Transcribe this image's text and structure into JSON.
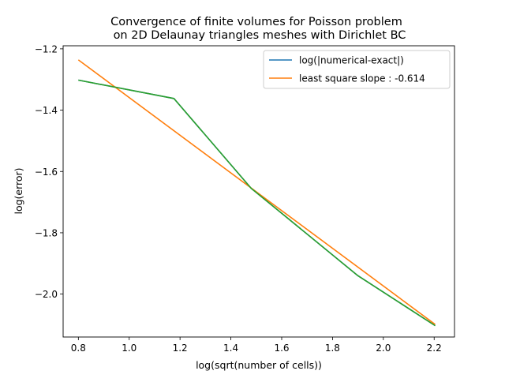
{
  "chart_data": {
    "type": "line",
    "title_line1": "Convergence of finite volumes for Poisson problem",
    "title_line2": "on 2D Delaunay triangles meshes with Dirichlet BC",
    "xlabel": "log(sqrt(number of cells))",
    "ylabel": "log(error)",
    "xlim": [
      0.74,
      2.28
    ],
    "ylim": [
      -2.14,
      -1.19
    ],
    "xticks": [
      0.8,
      1.0,
      1.2,
      1.4,
      1.6,
      1.8,
      2.0,
      2.2
    ],
    "xtick_labels": [
      "0.8",
      "1.0",
      "1.2",
      "1.4",
      "1.6",
      "1.8",
      "2.0",
      "2.2"
    ],
    "yticks": [
      -1.2,
      -1.4,
      -1.6,
      -1.8,
      -2.0
    ],
    "ytick_labels": [
      "−1.2",
      "−1.4",
      "−1.6",
      "−1.8",
      "−2.0"
    ],
    "grid": false,
    "legend_position": "top-right",
    "series": [
      {
        "name": "log(|numerical-exact|)",
        "color": "#1f77b4",
        "x": [
          0.8,
          1.176,
          1.48,
          1.9,
          2.204
        ],
        "y": [
          -1.302,
          -1.362,
          -1.655,
          -1.94,
          -2.103
        ]
      },
      {
        "name": "least square slope : -0.614",
        "color": "#ff7f0e",
        "x": [
          0.8,
          2.204
        ],
        "y": [
          -1.236,
          -2.099
        ]
      },
      {
        "name": "",
        "color": "#2ca02c",
        "x": [
          0.8,
          1.176,
          1.48,
          1.9,
          2.204
        ],
        "y": [
          -1.302,
          -1.362,
          -1.655,
          -1.94,
          -2.103
        ]
      }
    ]
  }
}
